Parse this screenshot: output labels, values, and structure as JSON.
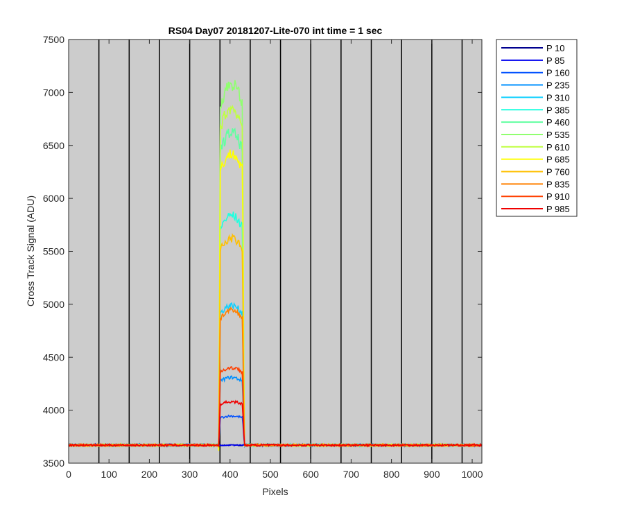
{
  "chart_data": {
    "type": "line",
    "title": "RS04 Day07 20181207-Lite-070 int time = 1 sec",
    "xlabel": "Pixels",
    "ylabel": "Cross Track Signal (ADU)",
    "xlim": [
      0,
      1024
    ],
    "ylim": [
      3500,
      7500
    ],
    "xticks": [
      0,
      100,
      200,
      300,
      400,
      500,
      600,
      700,
      800,
      900,
      1000
    ],
    "yticks": [
      3500,
      4000,
      4500,
      5000,
      5500,
      6000,
      6500,
      7000,
      7500
    ],
    "background_color": "#cccccc",
    "vertical_lines": [
      75,
      150,
      225,
      300,
      375,
      450,
      525,
      600,
      675,
      750,
      825,
      900,
      975
    ],
    "legend_position": "outside-top-right",
    "baseline": 3670,
    "plateau_start": 372,
    "plateau_end": 435,
    "series": [
      {
        "name": "P 10",
        "color": "#00008f",
        "peak": 3670
      },
      {
        "name": "P 85",
        "color": "#0000ef",
        "peak": 3670
      },
      {
        "name": "P 160",
        "color": "#0050ff",
        "peak": 3945
      },
      {
        "name": "P 235",
        "color": "#0090ff",
        "peak": 4310
      },
      {
        "name": "P 310",
        "color": "#10d0ff",
        "peak": 4990
      },
      {
        "name": "P 385",
        "color": "#20ffdf",
        "peak": 5840
      },
      {
        "name": "P 460",
        "color": "#60ffa0",
        "peak": 6620
      },
      {
        "name": "P 535",
        "color": "#90ff70",
        "peak": 7080
      },
      {
        "name": "P 610",
        "color": "#c0ff40",
        "peak": 6850
      },
      {
        "name": "P 685",
        "color": "#ffff00",
        "peak": 6420
      },
      {
        "name": "P 760",
        "color": "#ffbf00",
        "peak": 5620
      },
      {
        "name": "P 835",
        "color": "#ff8000",
        "peak": 4940
      },
      {
        "name": "P 910",
        "color": "#ff4000",
        "peak": 4400
      },
      {
        "name": "P 985",
        "color": "#ef0000",
        "peak": 4080
      }
    ]
  }
}
